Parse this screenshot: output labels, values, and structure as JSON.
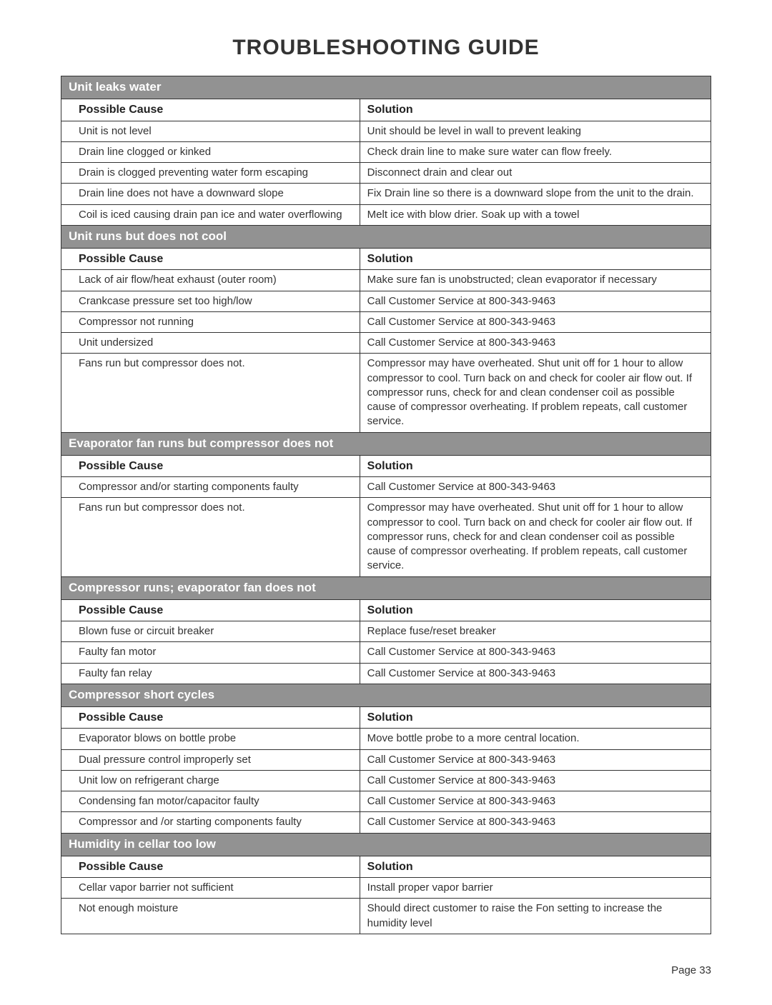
{
  "title": "TROUBLESHOOTING GUIDE",
  "col_labels": {
    "cause": "Possible Cause",
    "solution": "Solution"
  },
  "footer": "Page 33",
  "style": {
    "page_bg": "#ffffff",
    "section_bg": "#929292",
    "section_fg": "#ffffff",
    "border_color": "#333333",
    "text_color": "#333333",
    "title_fontsize": 30,
    "section_fontsize": 17,
    "header_fontsize": 16,
    "body_fontsize": 15,
    "col_widths_pct": [
      46,
      54
    ]
  },
  "sections": [
    {
      "title": "Unit leaks water",
      "rows": [
        {
          "cause": "Unit is not level",
          "solution": "Unit should be level in wall to prevent leaking"
        },
        {
          "cause": "Drain line clogged or kinked",
          "solution": "Check drain line to make sure  water can flow freely."
        },
        {
          "cause": "Drain is clogged preventing water form escaping",
          "solution": "Disconnect drain and clear out"
        },
        {
          "cause": "Drain line does not have a downward slope",
          "solution": "Fix Drain line so there is a downward slope from the unit to the drain."
        },
        {
          "cause": "Coil is iced causing drain pan ice and water overflowing",
          "solution": "Melt ice with blow drier. Soak up with a towel"
        }
      ]
    },
    {
      "title": "Unit runs but does not cool",
      "rows": [
        {
          "cause": "Lack of air flow/heat exhaust (outer room)",
          "solution": "Make sure fan is unobstructed; clean evaporator if necessary"
        },
        {
          "cause": "Crankcase pressure set too high/low",
          "solution": "Call Customer Service at 800-343-9463"
        },
        {
          "cause": "Compressor not running",
          "solution": "Call Customer Service at 800-343-9463"
        },
        {
          "cause": "Unit undersized",
          "solution": "Call Customer Service at 800-343-9463"
        },
        {
          "cause": "Fans run but compressor does not.",
          "solution": "Compressor may have overheated. Shut unit off for 1 hour to allow compressor to cool. Turn back on and check for cooler air flow out. If compressor runs, check for and clean condenser coil as possible cause of compressor overheating. If problem repeats, call customer service."
        }
      ]
    },
    {
      "title": "Evaporator fan runs but compressor does not",
      "rows": [
        {
          "cause": "Compressor and/or starting components faulty",
          "solution": "Call Customer Service at 800-343-9463"
        },
        {
          "cause": "Fans run but compressor does not.",
          "solution": "Compressor may have overheated. Shut unit off for 1 hour to allow compressor to cool. Turn back on and check for cooler air flow out. If compressor runs, check for and clean condenser coil as possible cause of compressor overheating. If problem repeats, call customer service."
        }
      ]
    },
    {
      "title": "Compressor runs; evaporator fan does not",
      "rows": [
        {
          "cause": "Blown fuse or circuit breaker",
          "solution": "Replace fuse/reset breaker"
        },
        {
          "cause": "Faulty fan motor",
          "solution": "Call Customer Service at 800-343-9463"
        },
        {
          "cause": "Faulty fan relay",
          "solution": "Call Customer Service at 800-343-9463"
        }
      ]
    },
    {
      "title": "Compressor short cycles",
      "rows": [
        {
          "cause": "Evaporator blows on bottle probe",
          "solution": "Move bottle probe to a more central location."
        },
        {
          "cause": "Dual pressure control improperly set",
          "solution": "Call Customer Service at 800-343-9463"
        },
        {
          "cause": "Unit low on refrigerant charge",
          "solution": "Call Customer Service at 800-343-9463"
        },
        {
          "cause": "Condensing fan motor/capacitor faulty",
          "solution": "Call Customer Service at 800-343-9463"
        },
        {
          "cause": "Compressor and /or starting components faulty",
          "solution": "Call Customer Service at 800-343-9463"
        }
      ]
    },
    {
      "title": "Humidity in cellar too low",
      "rows": [
        {
          "cause": "Cellar vapor barrier not sufficient",
          "solution": "Install proper vapor barrier"
        },
        {
          "cause": "Not enough moisture",
          "solution": "Should direct customer to raise the Fon setting to increase the humidity level"
        }
      ]
    }
  ]
}
